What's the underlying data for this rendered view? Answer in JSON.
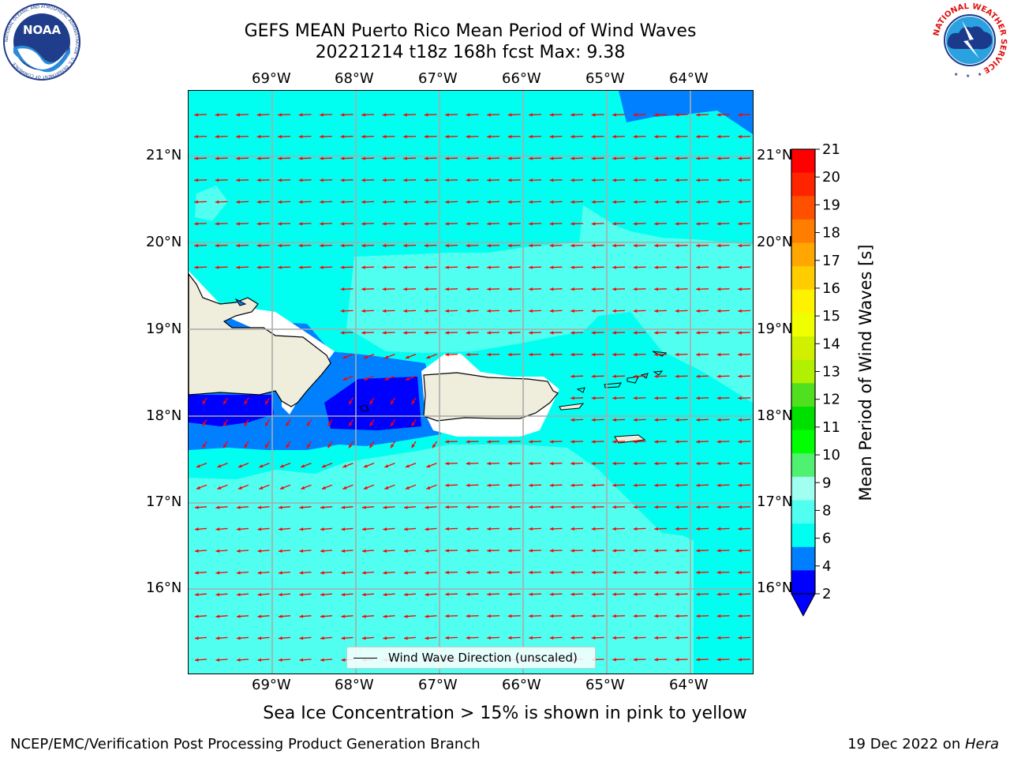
{
  "title": {
    "line1": "GEFS MEAN Puerto Rico Mean Period of Wind Waves",
    "line2": "20221214 t18z 168h fcst   Max: 9.38"
  },
  "map": {
    "lon_range": [
      -70,
      -63.25
    ],
    "lat_range": [
      15,
      21.75
    ],
    "lon_ticks": [
      "69°W",
      "68°W",
      "67°W",
      "66°W",
      "65°W",
      "64°W"
    ],
    "lat_ticks": [
      "21°N",
      "20°N",
      "19°N",
      "18°N",
      "17°N",
      "16°N"
    ],
    "grid": true,
    "arrow_color": "#ff0000",
    "land_color": "#efeddc",
    "legend_label": "Wind Wave Direction (unscaled)"
  },
  "colorbar": {
    "label": "Mean Period of Wind Waves [s]",
    "ticks": [
      "21",
      "20",
      "19",
      "18",
      "17",
      "16",
      "15",
      "14",
      "13",
      "12",
      "11",
      "10",
      "9",
      "8",
      "6",
      "4",
      "2"
    ],
    "levels_colors": [
      "#ff0000",
      "#ff2400",
      "#ff5000",
      "#ff7e00",
      "#ffa600",
      "#ffcc00",
      "#fff200",
      "#f0ff00",
      "#d0f000",
      "#b0f000",
      "#50e020",
      "#00e000",
      "#00ff00",
      "#50f070",
      "#a0fff0",
      "#50fff0",
      "#00fff0",
      "#0080ff",
      "#0000ff"
    ],
    "under_color": "#0000ff"
  },
  "subtitle": "Sea Ice Concentration > 15% is shown in pink to yellow",
  "footer": {
    "left": "NCEP/EMC/Verification Post Processing Product Generation Branch",
    "right_prefix": "19 Dec 2022 on ",
    "right_host": "Hera"
  },
  "logos": {
    "noaa": "NOAA",
    "noaa_ring": "NATIONAL OCEANIC AND ATMOSPHERIC ADMINISTRATION · U.S. DEPARTMENT OF COMMERCE",
    "nws_ring": "NATIONAL WEATHER SERVICE"
  }
}
